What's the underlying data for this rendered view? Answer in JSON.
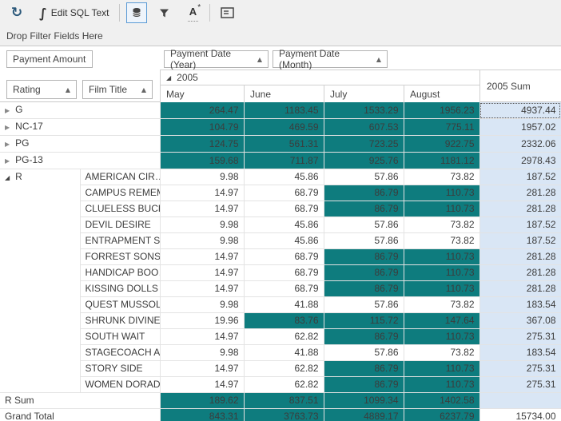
{
  "colors": {
    "teal": "#0e7c7e",
    "teal_text": "#13323c",
    "sum_bg": "#d9e6f5",
    "toolbar_bg": "#f0f0f0",
    "toggle_border": "#5b9bd5"
  },
  "ui": {
    "sort_asc_glyph": "▲",
    "collapsed_glyph": "▶",
    "expanded_glyph": "◢"
  },
  "toolbar": {
    "refresh_glyph": "↻",
    "edit_sql_glyph": "∫",
    "edit_sql_label": "Edit SQL Text",
    "font_icon_letter": "A",
    "font_icon_star": "*"
  },
  "filter_area": {
    "label": "Drop Filter Fields Here"
  },
  "fields": {
    "data_area": {
      "label": "Payment Amount"
    },
    "column_area": [
      {
        "label": "Payment Date (Year)",
        "sort": "asc"
      },
      {
        "label": "Payment Date (Month)",
        "sort": "asc"
      }
    ],
    "row_area": [
      {
        "label": "Rating",
        "sort": "asc"
      },
      {
        "label": "Film Title",
        "sort": "asc"
      }
    ]
  },
  "grid": {
    "column_group": {
      "label": "2005",
      "expanded": true
    },
    "month_headers": [
      "May",
      "June",
      "July",
      "August"
    ],
    "sum_header": "2005 Sum",
    "rows": [
      {
        "type": "group",
        "label": "G",
        "cells": [
          "264.47",
          "1183.45",
          "1533.29",
          "1956.23"
        ],
        "hl": [
          1,
          1,
          1,
          1
        ],
        "sum": "4937.44",
        "focused": true
      },
      {
        "type": "group",
        "label": "NC-17",
        "cells": [
          "104.79",
          "469.59",
          "607.53",
          "775.11"
        ],
        "hl": [
          1,
          1,
          1,
          1
        ],
        "sum": "1957.02"
      },
      {
        "type": "group",
        "label": "PG",
        "cells": [
          "124.75",
          "561.31",
          "723.25",
          "922.75"
        ],
        "hl": [
          1,
          1,
          1,
          1
        ],
        "sum": "2332.06"
      },
      {
        "type": "group",
        "label": "PG-13",
        "cells": [
          "159.68",
          "711.87",
          "925.76",
          "1181.12"
        ],
        "hl": [
          1,
          1,
          1,
          1
        ],
        "sum": "2978.43"
      },
      {
        "type": "detail",
        "rating": "R",
        "film": "AMERICAN CIR…",
        "cells": [
          "9.98",
          "45.86",
          "57.86",
          "73.82"
        ],
        "hl": [
          0,
          0,
          0,
          0
        ],
        "sum": "187.52"
      },
      {
        "type": "detail",
        "film": "CAMPUS REMEM…",
        "cells": [
          "14.97",
          "68.79",
          "86.79",
          "110.73"
        ],
        "hl": [
          0,
          0,
          1,
          1
        ],
        "sum": "281.28"
      },
      {
        "type": "detail",
        "film": "CLUELESS BUCKET",
        "cells": [
          "14.97",
          "68.79",
          "86.79",
          "110.73"
        ],
        "hl": [
          0,
          0,
          1,
          1
        ],
        "sum": "281.28"
      },
      {
        "type": "detail",
        "film": "DEVIL DESIRE",
        "cells": [
          "9.98",
          "45.86",
          "57.86",
          "73.82"
        ],
        "hl": [
          0,
          0,
          0,
          0
        ],
        "sum": "187.52"
      },
      {
        "type": "detail",
        "film": "ENTRAPMENT S…",
        "cells": [
          "9.98",
          "45.86",
          "57.86",
          "73.82"
        ],
        "hl": [
          0,
          0,
          0,
          0
        ],
        "sum": "187.52"
      },
      {
        "type": "detail",
        "film": "FORREST SONS",
        "cells": [
          "14.97",
          "68.79",
          "86.79",
          "110.73"
        ],
        "hl": [
          0,
          0,
          1,
          1
        ],
        "sum": "281.28"
      },
      {
        "type": "detail",
        "film": "HANDICAP BOO…",
        "cells": [
          "14.97",
          "68.79",
          "86.79",
          "110.73"
        ],
        "hl": [
          0,
          0,
          1,
          1
        ],
        "sum": "281.28"
      },
      {
        "type": "detail",
        "film": "KISSING DOLLS",
        "cells": [
          "14.97",
          "68.79",
          "86.79",
          "110.73"
        ],
        "hl": [
          0,
          0,
          1,
          1
        ],
        "sum": "281.28"
      },
      {
        "type": "detail",
        "film": "QUEST MUSSOLINI",
        "cells": [
          "9.98",
          "41.88",
          "57.86",
          "73.82"
        ],
        "hl": [
          0,
          0,
          0,
          0
        ],
        "sum": "183.54"
      },
      {
        "type": "detail",
        "film": "SHRUNK DIVINE",
        "cells": [
          "19.96",
          "83.76",
          "115.72",
          "147.64"
        ],
        "hl": [
          0,
          1,
          1,
          1
        ],
        "sum": "367.08"
      },
      {
        "type": "detail",
        "film": "SOUTH WAIT",
        "cells": [
          "14.97",
          "62.82",
          "86.79",
          "110.73"
        ],
        "hl": [
          0,
          0,
          1,
          1
        ],
        "sum": "275.31"
      },
      {
        "type": "detail",
        "film": "STAGECOACH A…",
        "cells": [
          "9.98",
          "41.88",
          "57.86",
          "73.82"
        ],
        "hl": [
          0,
          0,
          0,
          0
        ],
        "sum": "183.54"
      },
      {
        "type": "detail",
        "film": "STORY SIDE",
        "cells": [
          "14.97",
          "62.82",
          "86.79",
          "110.73"
        ],
        "hl": [
          0,
          0,
          1,
          1
        ],
        "sum": "275.31"
      },
      {
        "type": "detail",
        "film": "WOMEN DORADO",
        "cells": [
          "14.97",
          "62.82",
          "86.79",
          "110.73"
        ],
        "hl": [
          0,
          0,
          1,
          1
        ],
        "sum": "275.31"
      },
      {
        "type": "sum",
        "label": "R Sum",
        "cells": [
          "189.62",
          "837.51",
          "1099.34",
          "1402.58"
        ],
        "hl": [
          1,
          1,
          1,
          1
        ],
        "sum": ""
      },
      {
        "type": "grand",
        "label": "Grand Total",
        "cells": [
          "843.31",
          "3763.73",
          "4889.17",
          "6237.79"
        ],
        "hl": [
          1,
          1,
          1,
          1
        ],
        "sum": "15734.00",
        "sum_white": true
      }
    ]
  }
}
